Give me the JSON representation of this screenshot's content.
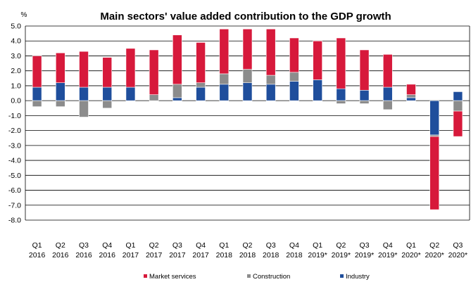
{
  "chart_data": {
    "type": "bar",
    "stacked": true,
    "title": "Main sectors' value added contribution to the GDP growth",
    "ylabel": "%",
    "ylim": [
      -8.0,
      5.0
    ],
    "ytick_step": 1.0,
    "grid": true,
    "legend_position": "bottom",
    "categories": [
      [
        "Q1",
        "2016"
      ],
      [
        "Q2",
        "2016"
      ],
      [
        "Q3",
        "2016"
      ],
      [
        "Q4",
        "2016"
      ],
      [
        "Q1",
        "2017"
      ],
      [
        "Q2",
        "2017"
      ],
      [
        "Q3",
        "2017"
      ],
      [
        "Q4",
        "2017"
      ],
      [
        "Q1",
        "2018"
      ],
      [
        "Q2",
        "2018"
      ],
      [
        "Q3",
        "2018"
      ],
      [
        "Q4",
        "2018"
      ],
      [
        "Q1",
        "2019*"
      ],
      [
        "Q2",
        "2019*"
      ],
      [
        "Q3",
        "2019*"
      ],
      [
        "Q4",
        "2019*"
      ],
      [
        "Q1",
        "2020*"
      ],
      [
        "Q2",
        "2020*"
      ],
      [
        "Q3",
        "2020*"
      ]
    ],
    "series": [
      {
        "name": "Industry",
        "color": "#1f4e9c",
        "values": [
          0.9,
          1.2,
          0.9,
          0.9,
          0.9,
          0.0,
          0.2,
          0.9,
          1.1,
          1.2,
          1.1,
          1.3,
          1.4,
          0.8,
          0.7,
          0.9,
          0.2,
          -2.3,
          0.6
        ]
      },
      {
        "name": "Construction",
        "color": "#8c8c8c",
        "values": [
          -0.4,
          -0.4,
          -1.1,
          -0.5,
          0.0,
          0.4,
          0.9,
          0.3,
          0.7,
          0.9,
          0.6,
          0.6,
          0.0,
          -0.2,
          -0.2,
          -0.6,
          0.2,
          -0.1,
          -0.7
        ]
      },
      {
        "name": "Market services",
        "color": "#d7193b",
        "values": [
          2.1,
          2.0,
          2.4,
          2.0,
          2.6,
          3.0,
          3.3,
          2.7,
          3.0,
          2.7,
          3.1,
          2.3,
          2.6,
          3.4,
          2.7,
          2.2,
          0.7,
          -4.9,
          -1.7
        ]
      }
    ]
  }
}
